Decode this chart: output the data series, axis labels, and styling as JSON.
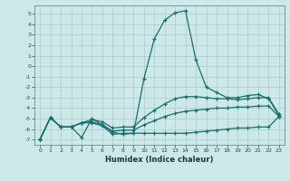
{
  "title": "",
  "xlabel": "Humidex (Indice chaleur)",
  "bg_color": "#cce8e8",
  "line_color": "#1a6e6e",
  "grid_color": "#aacccc",
  "xlim": [
    -0.5,
    23.5
  ],
  "ylim": [
    -7.5,
    5.8
  ],
  "yticks": [
    -7,
    -6,
    -5,
    -4,
    -3,
    -2,
    -1,
    0,
    1,
    2,
    3,
    4,
    5
  ],
  "xticks": [
    0,
    1,
    2,
    3,
    4,
    5,
    6,
    7,
    8,
    9,
    10,
    11,
    12,
    13,
    14,
    15,
    16,
    17,
    18,
    19,
    20,
    21,
    22,
    23
  ],
  "curves": [
    {
      "x": [
        0,
        1,
        2,
        3,
        4,
        5,
        6,
        7,
        8,
        9,
        10,
        11,
        12,
        13,
        14,
        15,
        16,
        17,
        18,
        19,
        20,
        21,
        22,
        23
      ],
      "y": [
        -7.0,
        -4.9,
        -5.8,
        -5.8,
        -5.4,
        -5.4,
        -5.7,
        -6.5,
        -6.4,
        -6.4,
        -6.4,
        -6.4,
        -6.4,
        -6.4,
        -6.4,
        -6.3,
        -6.2,
        -6.1,
        -6.0,
        -5.9,
        -5.9,
        -5.8,
        -5.8,
        -4.8
      ]
    },
    {
      "x": [
        0,
        1,
        2,
        3,
        4,
        5,
        6,
        7,
        8,
        9,
        10,
        11,
        12,
        13,
        14,
        15,
        16,
        17,
        18,
        19,
        20,
        21,
        22,
        23
      ],
      "y": [
        -7.0,
        -4.9,
        -5.8,
        -5.8,
        -5.4,
        -5.3,
        -5.6,
        -6.2,
        -6.1,
        -6.1,
        -5.6,
        -5.2,
        -4.8,
        -4.5,
        -4.3,
        -4.2,
        -4.1,
        -4.0,
        -4.0,
        -3.9,
        -3.9,
        -3.8,
        -3.8,
        -4.8
      ]
    },
    {
      "x": [
        0,
        1,
        2,
        3,
        4,
        5,
        6,
        7,
        8,
        9,
        10,
        11,
        12,
        13,
        14,
        15,
        16,
        17,
        18,
        19,
        20,
        21,
        22,
        23
      ],
      "y": [
        -7.0,
        -4.9,
        -5.8,
        -5.8,
        -5.4,
        -5.1,
        -5.3,
        -5.9,
        -5.8,
        -5.8,
        -4.9,
        -4.2,
        -3.6,
        -3.1,
        -2.9,
        -2.9,
        -3.0,
        -3.1,
        -3.1,
        -3.2,
        -3.1,
        -3.0,
        -3.0,
        -4.6
      ]
    },
    {
      "x": [
        0,
        1,
        2,
        3,
        4,
        5,
        6,
        7,
        8,
        9,
        10,
        11,
        12,
        13,
        14,
        15,
        16,
        17,
        18,
        19,
        20,
        21,
        22,
        23
      ],
      "y": [
        -7.0,
        -4.9,
        -5.8,
        -5.8,
        -6.8,
        -5.0,
        -5.6,
        -6.3,
        -6.5,
        -6.4,
        -1.2,
        2.6,
        4.4,
        5.1,
        5.3,
        0.6,
        -2.0,
        -2.5,
        -3.0,
        -3.0,
        -2.8,
        -2.7,
        -3.1,
        -4.7
      ]
    }
  ]
}
